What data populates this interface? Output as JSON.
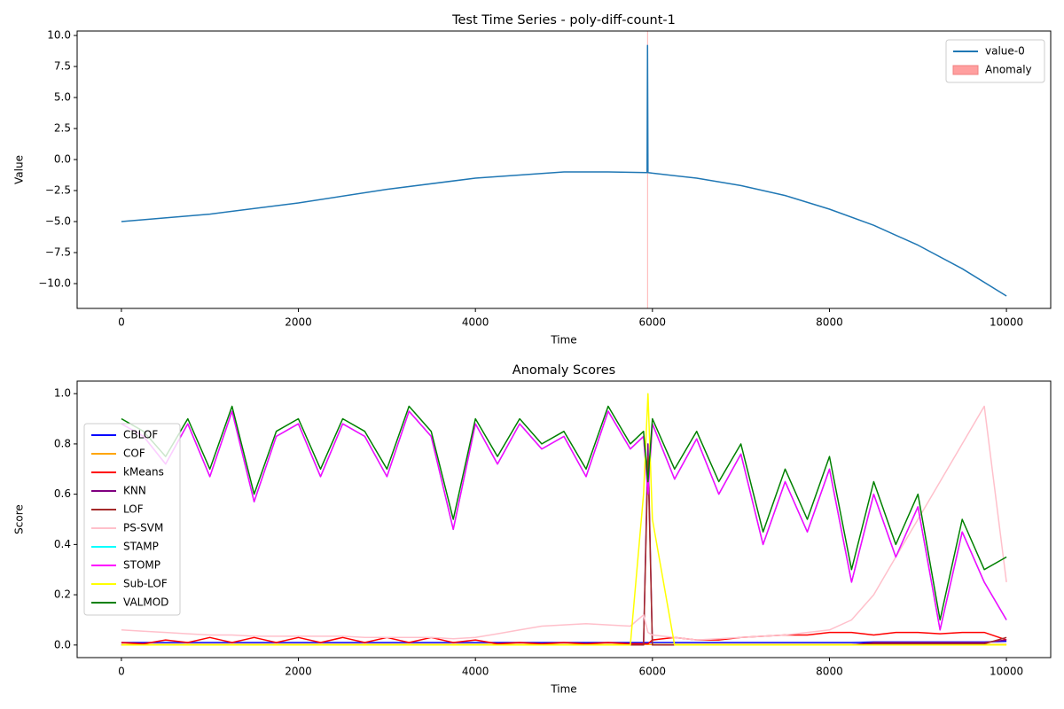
{
  "chart_data": [
    {
      "type": "line",
      "title": "Test Time Series - poly-diff-count-1",
      "xlabel": "Time",
      "ylabel": "Value",
      "x": [
        0,
        1000,
        2000,
        3000,
        4000,
        5000,
        5500,
        5940,
        5945,
        5950,
        6000,
        6500,
        7000,
        7500,
        8000,
        8500,
        9000,
        9500,
        10000
      ],
      "series": [
        {
          "name": "value-0",
          "color": "#1f77b4",
          "values": [
            -5,
            -4.4,
            -3.5,
            -2.4,
            -1.5,
            -1.0,
            -1.0,
            -1.05,
            9.2,
            -1.05,
            -1.1,
            -1.5,
            -2.1,
            -2.9,
            -4.0,
            -5.3,
            -6.9,
            -8.8,
            -11
          ]
        }
      ],
      "anomaly": {
        "name": "Anomaly",
        "color": "#ff9f9f",
        "range": [
          5940,
          5950
        ]
      },
      "xlim": [
        -500,
        10500
      ],
      "ylim": [
        -12,
        10.36
      ],
      "xticks": [
        0,
        2000,
        4000,
        6000,
        8000,
        10000
      ],
      "yticks": [
        {
          "value": -10,
          "label": "−10.0"
        },
        {
          "value": -7.5,
          "label": "−7.5"
        },
        {
          "value": -5,
          "label": "−5.0"
        },
        {
          "value": -2.5,
          "label": "−2.5"
        },
        {
          "value": 0,
          "label": "0.0"
        },
        {
          "value": 2.5,
          "label": "2.5"
        },
        {
          "value": 5,
          "label": "5.0"
        },
        {
          "value": 7.5,
          "label": "7.5"
        },
        {
          "value": 10,
          "label": "10.0"
        }
      ],
      "legend_loc": "upper right"
    },
    {
      "type": "line",
      "title": "Anomaly Scores",
      "xlabel": "Time",
      "ylabel": "Score",
      "x": [
        0,
        250,
        500,
        750,
        1000,
        1250,
        1500,
        1750,
        2000,
        2250,
        2500,
        2750,
        3000,
        3250,
        3500,
        3750,
        4000,
        4250,
        4500,
        4750,
        5000,
        5250,
        5500,
        5750,
        5900,
        5950,
        6000,
        6250,
        6500,
        6750,
        7000,
        7250,
        7500,
        7750,
        8000,
        8250,
        8500,
        8750,
        9000,
        9250,
        9500,
        9750,
        10000
      ],
      "series": [
        {
          "name": "CBLOF",
          "color": "#0000ff",
          "values": [
            0.01,
            0.01,
            0.01,
            0.01,
            0.01,
            0.01,
            0.01,
            0.01,
            0.01,
            0.01,
            0.01,
            0.01,
            0.01,
            0.01,
            0.01,
            0.01,
            0.01,
            0.01,
            0.01,
            0.01,
            0.01,
            0.01,
            0.01,
            0.01,
            0.01,
            0.01,
            0.01,
            0.01,
            0.01,
            0.01,
            0.01,
            0.01,
            0.01,
            0.01,
            0.01,
            0.01,
            0.012,
            0.012,
            0.012,
            0.012,
            0.012,
            0.012,
            0.015
          ]
        },
        {
          "name": "COF",
          "color": "#ffa500",
          "values": [
            0.002,
            0.002,
            0.002,
            0.002,
            0.002,
            0.002,
            0.002,
            0.002,
            0.002,
            0.002,
            0.002,
            0.002,
            0.002,
            0.002,
            0.002,
            0.002,
            0.002,
            0.002,
            0.002,
            0.002,
            0.002,
            0.002,
            0.002,
            0.002,
            0.002,
            0.002,
            0.002,
            0.002,
            0.002,
            0.002,
            0.002,
            0.002,
            0.002,
            0.002,
            0.002,
            0.002,
            0.002,
            0.002,
            0.002,
            0.002,
            0.002,
            0.002,
            0.002
          ]
        },
        {
          "name": "kMeans",
          "color": "#ff0000",
          "values": [
            0.01,
            0.005,
            0.02,
            0.01,
            0.03,
            0.01,
            0.03,
            0.01,
            0.03,
            0.01,
            0.03,
            0.01,
            0.03,
            0.01,
            0.03,
            0.01,
            0.02,
            0.005,
            0.01,
            0.005,
            0.01,
            0.005,
            0.01,
            0.005,
            0.005,
            0.005,
            0.02,
            0.03,
            0.02,
            0.02,
            0.03,
            0.035,
            0.04,
            0.04,
            0.05,
            0.05,
            0.04,
            0.05,
            0.05,
            0.045,
            0.05,
            0.05,
            0.02
          ]
        },
        {
          "name": "KNN",
          "color": "#800080",
          "values": [
            0,
            0,
            0,
            0,
            0,
            0,
            0,
            0,
            0,
            0,
            0,
            0,
            0,
            0,
            0,
            0,
            0,
            0,
            0,
            0,
            0,
            0,
            0,
            0,
            0,
            0.8,
            0,
            0,
            0,
            0,
            0,
            0,
            0,
            0,
            0,
            0,
            0.01,
            0.01,
            0.01,
            0.01,
            0.01,
            0.01,
            0.02
          ]
        },
        {
          "name": "LOF",
          "color": "#a52a2a",
          "values": [
            0,
            0,
            0,
            0,
            0,
            0,
            0,
            0,
            0,
            0,
            0,
            0,
            0,
            0,
            0,
            0,
            0,
            0,
            0,
            0,
            0,
            0,
            0,
            0,
            0,
            0.75,
            0,
            0,
            0,
            0,
            0,
            0,
            0,
            0,
            0,
            0,
            0.005,
            0.005,
            0.005,
            0.005,
            0.005,
            0.005,
            0.03
          ]
        },
        {
          "name": "PS-SVM",
          "color": "#ffc0cb",
          "values": [
            0.06,
            0.055,
            0.05,
            0.045,
            0.04,
            0.04,
            0.035,
            0.035,
            0.035,
            0.035,
            0.035,
            0.03,
            0.03,
            0.03,
            0.03,
            0.025,
            0.03,
            0.045,
            0.06,
            0.075,
            0.08,
            0.085,
            0.08,
            0.075,
            0.12,
            0.05,
            0.04,
            0.03,
            0.02,
            0.025,
            0.03,
            0.035,
            0.04,
            0.05,
            0.06,
            0.1,
            0.2,
            0.35,
            0.5,
            0.65,
            0.8,
            0.95,
            0.25
          ]
        },
        {
          "name": "STAMP",
          "color": "#00ffff",
          "values": [
            0.88,
            0.83,
            0.72,
            0.88,
            0.67,
            0.93,
            0.57,
            0.83,
            0.88,
            0.67,
            0.88,
            0.83,
            0.67,
            0.93,
            0.83,
            0.46,
            0.88,
            0.72,
            0.88,
            0.78,
            0.83,
            0.67,
            0.93,
            0.78,
            0.83,
            0.6,
            0.88,
            0.66,
            0.82,
            0.6,
            0.76,
            0.4,
            0.65,
            0.45,
            0.7,
            0.25,
            0.6,
            0.35,
            0.55,
            0.06,
            0.45,
            0.25,
            0.1
          ]
        },
        {
          "name": "STOMP",
          "color": "#ff00ff",
          "values": [
            0.88,
            0.83,
            0.72,
            0.88,
            0.67,
            0.93,
            0.57,
            0.83,
            0.88,
            0.67,
            0.88,
            0.83,
            0.67,
            0.93,
            0.83,
            0.46,
            0.88,
            0.72,
            0.88,
            0.78,
            0.83,
            0.67,
            0.93,
            0.78,
            0.83,
            0.6,
            0.88,
            0.66,
            0.82,
            0.6,
            0.76,
            0.4,
            0.65,
            0.45,
            0.7,
            0.25,
            0.6,
            0.35,
            0.55,
            0.06,
            0.45,
            0.25,
            0.1
          ]
        },
        {
          "name": "Sub-LOF",
          "color": "#ffff00",
          "values": [
            0,
            0,
            0,
            0,
            0,
            0,
            0,
            0,
            0,
            0,
            0,
            0,
            0,
            0,
            0,
            0,
            0,
            0,
            0,
            0,
            0,
            0,
            0,
            0,
            0.6,
            1.0,
            0.5,
            0,
            0,
            0,
            0,
            0,
            0,
            0,
            0,
            0,
            0,
            0,
            0,
            0,
            0,
            0,
            0
          ]
        },
        {
          "name": "VALMOD",
          "color": "#008000",
          "values": [
            0.9,
            0.85,
            0.75,
            0.9,
            0.7,
            0.95,
            0.6,
            0.85,
            0.9,
            0.7,
            0.9,
            0.85,
            0.7,
            0.95,
            0.85,
            0.5,
            0.9,
            0.75,
            0.9,
            0.8,
            0.85,
            0.7,
            0.95,
            0.8,
            0.85,
            0.65,
            0.9,
            0.7,
            0.85,
            0.65,
            0.8,
            0.45,
            0.7,
            0.5,
            0.75,
            0.3,
            0.65,
            0.4,
            0.6,
            0.1,
            0.5,
            0.3,
            0.35
          ]
        }
      ],
      "xlim": [
        -500,
        10500
      ],
      "ylim": [
        -0.05,
        1.05
      ],
      "xticks": [
        0,
        2000,
        4000,
        6000,
        8000,
        10000
      ],
      "yticks": [
        {
          "value": 0,
          "label": "0.0"
        },
        {
          "value": 0.2,
          "label": "0.2"
        },
        {
          "value": 0.4,
          "label": "0.4"
        },
        {
          "value": 0.6,
          "label": "0.6"
        },
        {
          "value": 0.8,
          "label": "0.8"
        },
        {
          "value": 1,
          "label": "1.0"
        }
      ],
      "legend_loc": "center left"
    }
  ]
}
